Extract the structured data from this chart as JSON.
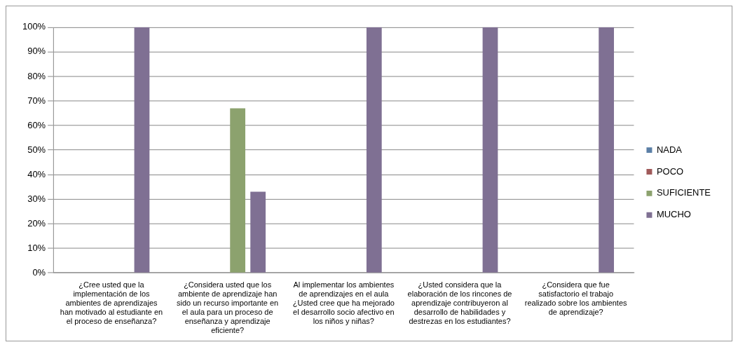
{
  "chart_data": {
    "type": "bar",
    "categories": [
      "¿Cree usted que la implementación de los ambientes de aprendizajes han motivado al estudiante en el proceso de enseñanza?",
      "¿Considera usted que los ambiente de aprendizaje han sido un recurso importante en el aula para un proceso de enseñanza y aprendizaje eficiente?",
      "Al implementar los ambientes de aprendizajes en el aula ¿Usted cree que ha mejorado el desarrollo socio afectivo en los niños y niñas?",
      "¿Usted considera que la elaboración de los rincones de aprendizaje contribuyeron al desarrollo de habilidades y destrezas en los estudiantes?",
      "¿Considera que fue satisfactorio el trabajo realizado sobre los ambientes de aprendizaje?"
    ],
    "series": [
      {
        "name": "NADA",
        "color": "#5b7fa6",
        "values": [
          0,
          0,
          0,
          0,
          0
        ]
      },
      {
        "name": "POCO",
        "color": "#a05a5a",
        "values": [
          0,
          0,
          0,
          0,
          0
        ]
      },
      {
        "name": "SUFICIENTE",
        "color": "#8ca26e",
        "values": [
          0,
          67,
          0,
          0,
          0
        ]
      },
      {
        "name": "MUCHO",
        "color": "#7f7093",
        "values": [
          100,
          33,
          100,
          100,
          100
        ]
      }
    ],
    "ylim": [
      0,
      100
    ],
    "yticks": [
      {
        "value": 0,
        "label": "0%"
      },
      {
        "value": 10,
        "label": "10%"
      },
      {
        "value": 20,
        "label": "20%"
      },
      {
        "value": 30,
        "label": "30%"
      },
      {
        "value": 40,
        "label": "40%"
      },
      {
        "value": 50,
        "label": "50%"
      },
      {
        "value": 60,
        "label": "60%"
      },
      {
        "value": 70,
        "label": "70%"
      },
      {
        "value": 80,
        "label": "80%"
      },
      {
        "value": 90,
        "label": "90%"
      },
      {
        "value": 100,
        "label": "100%"
      }
    ],
    "grid": "y",
    "legend": "right"
  }
}
